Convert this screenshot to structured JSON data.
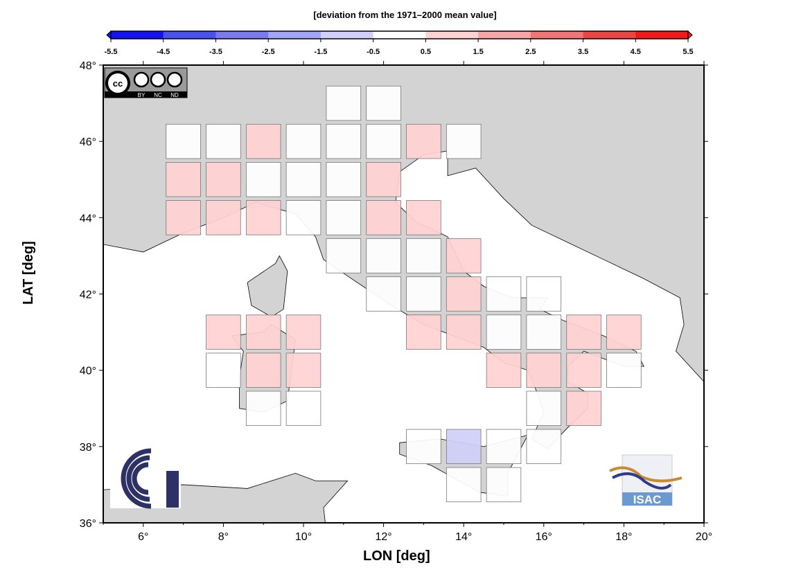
{
  "colorbar": {
    "title": "[deviation from the 1971–2000 mean value]",
    "ticks": [
      "-5.5",
      "-4.5",
      "-3.5",
      "-2.5",
      "-1.5",
      "-0.5",
      "0.5",
      "1.5",
      "2.5",
      "3.5",
      "4.5",
      "5.5"
    ],
    "colors": [
      "#1414f0",
      "#4a52ec",
      "#7a7aec",
      "#a2a4f4",
      "#d0d0fa",
      "#ffffff",
      "#ffd2d2",
      "#f5a6a6",
      "#ef7676",
      "#ea4646",
      "#f01a1a"
    ]
  },
  "axes": {
    "xlabel": "LON [deg]",
    "ylabel": "LAT [deg]",
    "xticks": [
      "6°",
      "8°",
      "10°",
      "12°",
      "14°",
      "16°",
      "18°",
      "20°"
    ],
    "yticks": [
      "36°",
      "38°",
      "40°",
      "42°",
      "44°",
      "46°",
      "48°"
    ],
    "lon_range": [
      5,
      20
    ],
    "lat_range": [
      36,
      48
    ]
  },
  "land_color": "#d3d3d3",
  "grid_cells": [
    {
      "lon": 11,
      "lat": 47,
      "class": 0
    },
    {
      "lon": 12,
      "lat": 47,
      "class": 0
    },
    {
      "lon": 7,
      "lat": 46,
      "class": 0
    },
    {
      "lon": 8,
      "lat": 46,
      "class": 0
    },
    {
      "lon": 9,
      "lat": 46,
      "class": 1
    },
    {
      "lon": 10,
      "lat": 46,
      "class": 0
    },
    {
      "lon": 11,
      "lat": 46,
      "class": 0
    },
    {
      "lon": 12,
      "lat": 46,
      "class": 0
    },
    {
      "lon": 13,
      "lat": 46,
      "class": 1
    },
    {
      "lon": 14,
      "lat": 46,
      "class": 0
    },
    {
      "lon": 7,
      "lat": 45,
      "class": 1
    },
    {
      "lon": 8,
      "lat": 45,
      "class": 1
    },
    {
      "lon": 9,
      "lat": 45,
      "class": 0
    },
    {
      "lon": 10,
      "lat": 45,
      "class": 0
    },
    {
      "lon": 11,
      "lat": 45,
      "class": 0
    },
    {
      "lon": 12,
      "lat": 45,
      "class": 1
    },
    {
      "lon": 7,
      "lat": 44,
      "class": 1
    },
    {
      "lon": 8,
      "lat": 44,
      "class": 1
    },
    {
      "lon": 9,
      "lat": 44,
      "class": 1
    },
    {
      "lon": 10,
      "lat": 44,
      "class": 0
    },
    {
      "lon": 11,
      "lat": 44,
      "class": 0
    },
    {
      "lon": 12,
      "lat": 44,
      "class": 1
    },
    {
      "lon": 13,
      "lat": 44,
      "class": 1
    },
    {
      "lon": 11,
      "lat": 43,
      "class": 0
    },
    {
      "lon": 12,
      "lat": 43,
      "class": 0
    },
    {
      "lon": 13,
      "lat": 43,
      "class": 0
    },
    {
      "lon": 14,
      "lat": 43,
      "class": 1
    },
    {
      "lon": 12,
      "lat": 42,
      "class": 0
    },
    {
      "lon": 13,
      "lat": 42,
      "class": 0
    },
    {
      "lon": 14,
      "lat": 42,
      "class": 1
    },
    {
      "lon": 15,
      "lat": 42,
      "class": 0
    },
    {
      "lon": 16,
      "lat": 42,
      "class": 0
    },
    {
      "lon": 8,
      "lat": 41,
      "class": 1
    },
    {
      "lon": 9,
      "lat": 41,
      "class": 1
    },
    {
      "lon": 10,
      "lat": 41,
      "class": 1
    },
    {
      "lon": 13,
      "lat": 41,
      "class": 1
    },
    {
      "lon": 14,
      "lat": 41,
      "class": 1
    },
    {
      "lon": 15,
      "lat": 41,
      "class": 0
    },
    {
      "lon": 16,
      "lat": 41,
      "class": 0
    },
    {
      "lon": 17,
      "lat": 41,
      "class": 1
    },
    {
      "lon": 18,
      "lat": 41,
      "class": 1
    },
    {
      "lon": 8,
      "lat": 40,
      "class": 0
    },
    {
      "lon": 9,
      "lat": 40,
      "class": 1
    },
    {
      "lon": 10,
      "lat": 40,
      "class": 1
    },
    {
      "lon": 15,
      "lat": 40,
      "class": 1
    },
    {
      "lon": 16,
      "lat": 40,
      "class": 1
    },
    {
      "lon": 17,
      "lat": 40,
      "class": 1
    },
    {
      "lon": 18,
      "lat": 40,
      "class": 0
    },
    {
      "lon": 9,
      "lat": 39,
      "class": 0
    },
    {
      "lon": 10,
      "lat": 39,
      "class": 0
    },
    {
      "lon": 16,
      "lat": 39,
      "class": 0
    },
    {
      "lon": 17,
      "lat": 39,
      "class": 1
    },
    {
      "lon": 13,
      "lat": 38,
      "class": 0
    },
    {
      "lon": 14,
      "lat": 38,
      "class": -1
    },
    {
      "lon": 15,
      "lat": 38,
      "class": 0
    },
    {
      "lon": 16,
      "lat": 38,
      "class": 0
    },
    {
      "lon": 14,
      "lat": 37,
      "class": 0
    },
    {
      "lon": 15,
      "lat": 37,
      "class": 0
    }
  ],
  "logos": {
    "cc_labels": [
      "BY",
      "NC",
      "ND"
    ],
    "isac": "ISAC"
  }
}
